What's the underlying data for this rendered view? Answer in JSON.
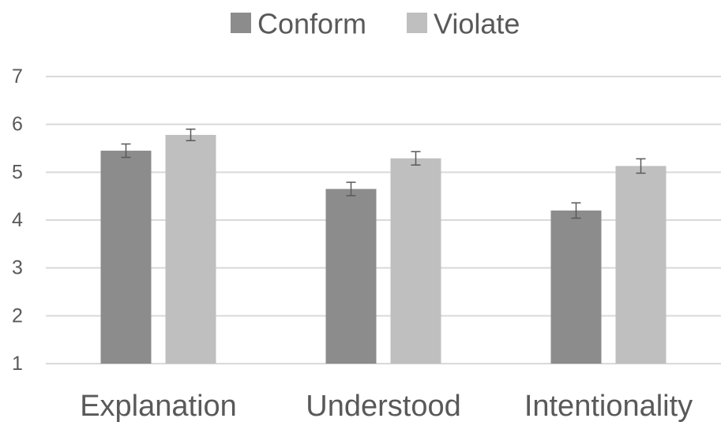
{
  "chart_data": {
    "type": "bar",
    "categories": [
      "Explanation",
      "Understood",
      "Intentionality"
    ],
    "series": [
      {
        "name": "Conform",
        "color": "#8c8c8c",
        "values": [
          5.45,
          4.65,
          4.2
        ],
        "error": [
          0.14,
          0.14,
          0.16
        ]
      },
      {
        "name": "Violate",
        "color": "#bfbfbf",
        "values": [
          5.78,
          5.29,
          5.13
        ],
        "error": [
          0.12,
          0.14,
          0.15
        ]
      }
    ],
    "ylim": [
      1,
      7
    ],
    "yticks": [
      "1",
      "2",
      "3",
      "4",
      "5",
      "6",
      "7"
    ],
    "grid": true,
    "legend": "top",
    "error_bar_color": "#595959",
    "grid_color": "#d9d9d9"
  }
}
